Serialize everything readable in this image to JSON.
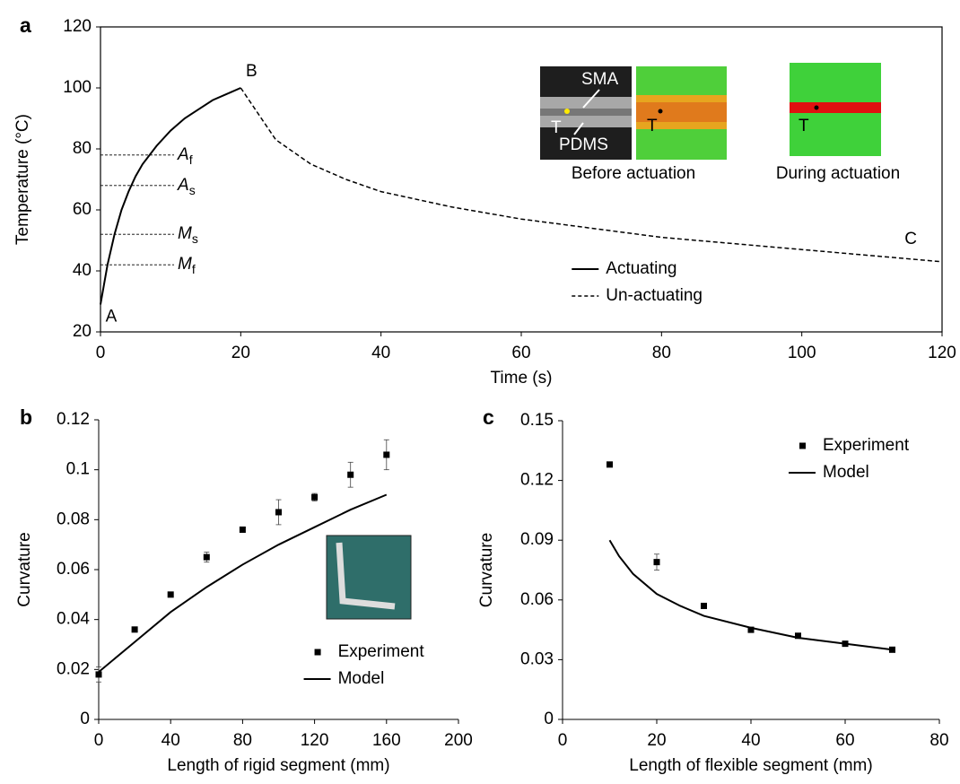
{
  "chart_data": [
    {
      "type": "line",
      "panel": "a",
      "x_label": "Time (s)",
      "y_label": "Temperature (°C)",
      "xlim": [
        0,
        120
      ],
      "xticks": [
        0,
        20,
        40,
        60,
        80,
        100,
        120
      ],
      "ylim": [
        20,
        120
      ],
      "yticks": [
        20,
        40,
        60,
        80,
        100,
        120
      ],
      "legend": "lower-center",
      "series": [
        {
          "name": "Actuating",
          "style": "solid",
          "color": "#000000",
          "x": [
            0,
            1,
            2,
            3,
            4,
            5,
            6,
            8,
            10,
            12,
            14,
            16,
            18,
            20
          ],
          "values": [
            29,
            42,
            52,
            60,
            66,
            71,
            75,
            81,
            86,
            90,
            93,
            96,
            98,
            100
          ]
        },
        {
          "name": "Un-actuating",
          "style": "dashed",
          "color": "#000000",
          "x": [
            20,
            25,
            30,
            35,
            40,
            50,
            60,
            70,
            80,
            90,
            100,
            110,
            120
          ],
          "values": [
            100,
            83,
            75,
            70,
            66,
            61,
            57,
            54,
            51,
            49,
            47,
            45,
            43
          ]
        }
      ],
      "reference_lines": [
        {
          "label": "A",
          "sub": "f",
          "value": 78
        },
        {
          "label": "A",
          "sub": "s",
          "value": 68
        },
        {
          "label": "M",
          "sub": "s",
          "value": 52
        },
        {
          "label": "M",
          "sub": "f",
          "value": 42
        }
      ],
      "annotations": [
        {
          "text": "A",
          "x": 0,
          "y": 29
        },
        {
          "text": "B",
          "x": 20,
          "y": 100
        },
        {
          "text": "C",
          "x": 114,
          "y": 45
        }
      ],
      "inset_labels": {
        "sma": "SMA",
        "pdms": "PDMS",
        "t": "T",
        "before": "Before actuation",
        "during": "During actuation"
      }
    },
    {
      "type": "scatter",
      "panel": "b",
      "x_label": "Length of rigid segment (mm)",
      "y_label": "Curvature",
      "xlim": [
        0,
        200
      ],
      "xticks": [
        0,
        40,
        80,
        120,
        160,
        200
      ],
      "ylim": [
        0,
        0.12
      ],
      "yticks": [
        0,
        0.02,
        0.04,
        0.06,
        0.08,
        0.1,
        0.12
      ],
      "legend": "lower-right",
      "series": [
        {
          "name": "Experiment",
          "style": "markers",
          "color": "#000000",
          "x": [
            0,
            20,
            40,
            60,
            80,
            100,
            120,
            140,
            160
          ],
          "values": [
            0.018,
            0.036,
            0.05,
            0.065,
            0.076,
            0.083,
            0.089,
            0.098,
            0.106
          ],
          "errors": [
            0.003,
            0.001,
            0.001,
            0.002,
            0.001,
            0.005,
            0.0015,
            0.005,
            0.006
          ]
        },
        {
          "name": "Model",
          "style": "solid",
          "color": "#000000",
          "x": [
            0,
            20,
            40,
            60,
            80,
            100,
            120,
            140,
            160
          ],
          "values": [
            0.019,
            0.031,
            0.043,
            0.053,
            0.062,
            0.07,
            0.077,
            0.084,
            0.09
          ]
        }
      ]
    },
    {
      "type": "scatter",
      "panel": "c",
      "x_label": "Length of flexible segment (mm)",
      "y_label": "Curvature",
      "xlim": [
        0,
        80
      ],
      "xticks": [
        0,
        20,
        40,
        60,
        80
      ],
      "ylim": [
        0,
        0.15
      ],
      "yticks": [
        0,
        0.03,
        0.06,
        0.09,
        0.12,
        0.15
      ],
      "legend": "upper-right",
      "series": [
        {
          "name": "Experiment",
          "style": "markers",
          "color": "#000000",
          "x": [
            10,
            20,
            30,
            40,
            50,
            60,
            70
          ],
          "values": [
            0.128,
            0.079,
            0.057,
            0.045,
            0.042,
            0.038,
            0.035
          ],
          "errors": [
            null,
            0.004,
            null,
            null,
            null,
            null,
            null
          ]
        },
        {
          "name": "Model",
          "style": "solid",
          "color": "#000000",
          "x": [
            10,
            12,
            15,
            20,
            25,
            30,
            40,
            50,
            60,
            70
          ],
          "values": [
            0.09,
            0.082,
            0.073,
            0.063,
            0.057,
            0.052,
            0.046,
            0.041,
            0.038,
            0.035
          ]
        }
      ]
    }
  ]
}
